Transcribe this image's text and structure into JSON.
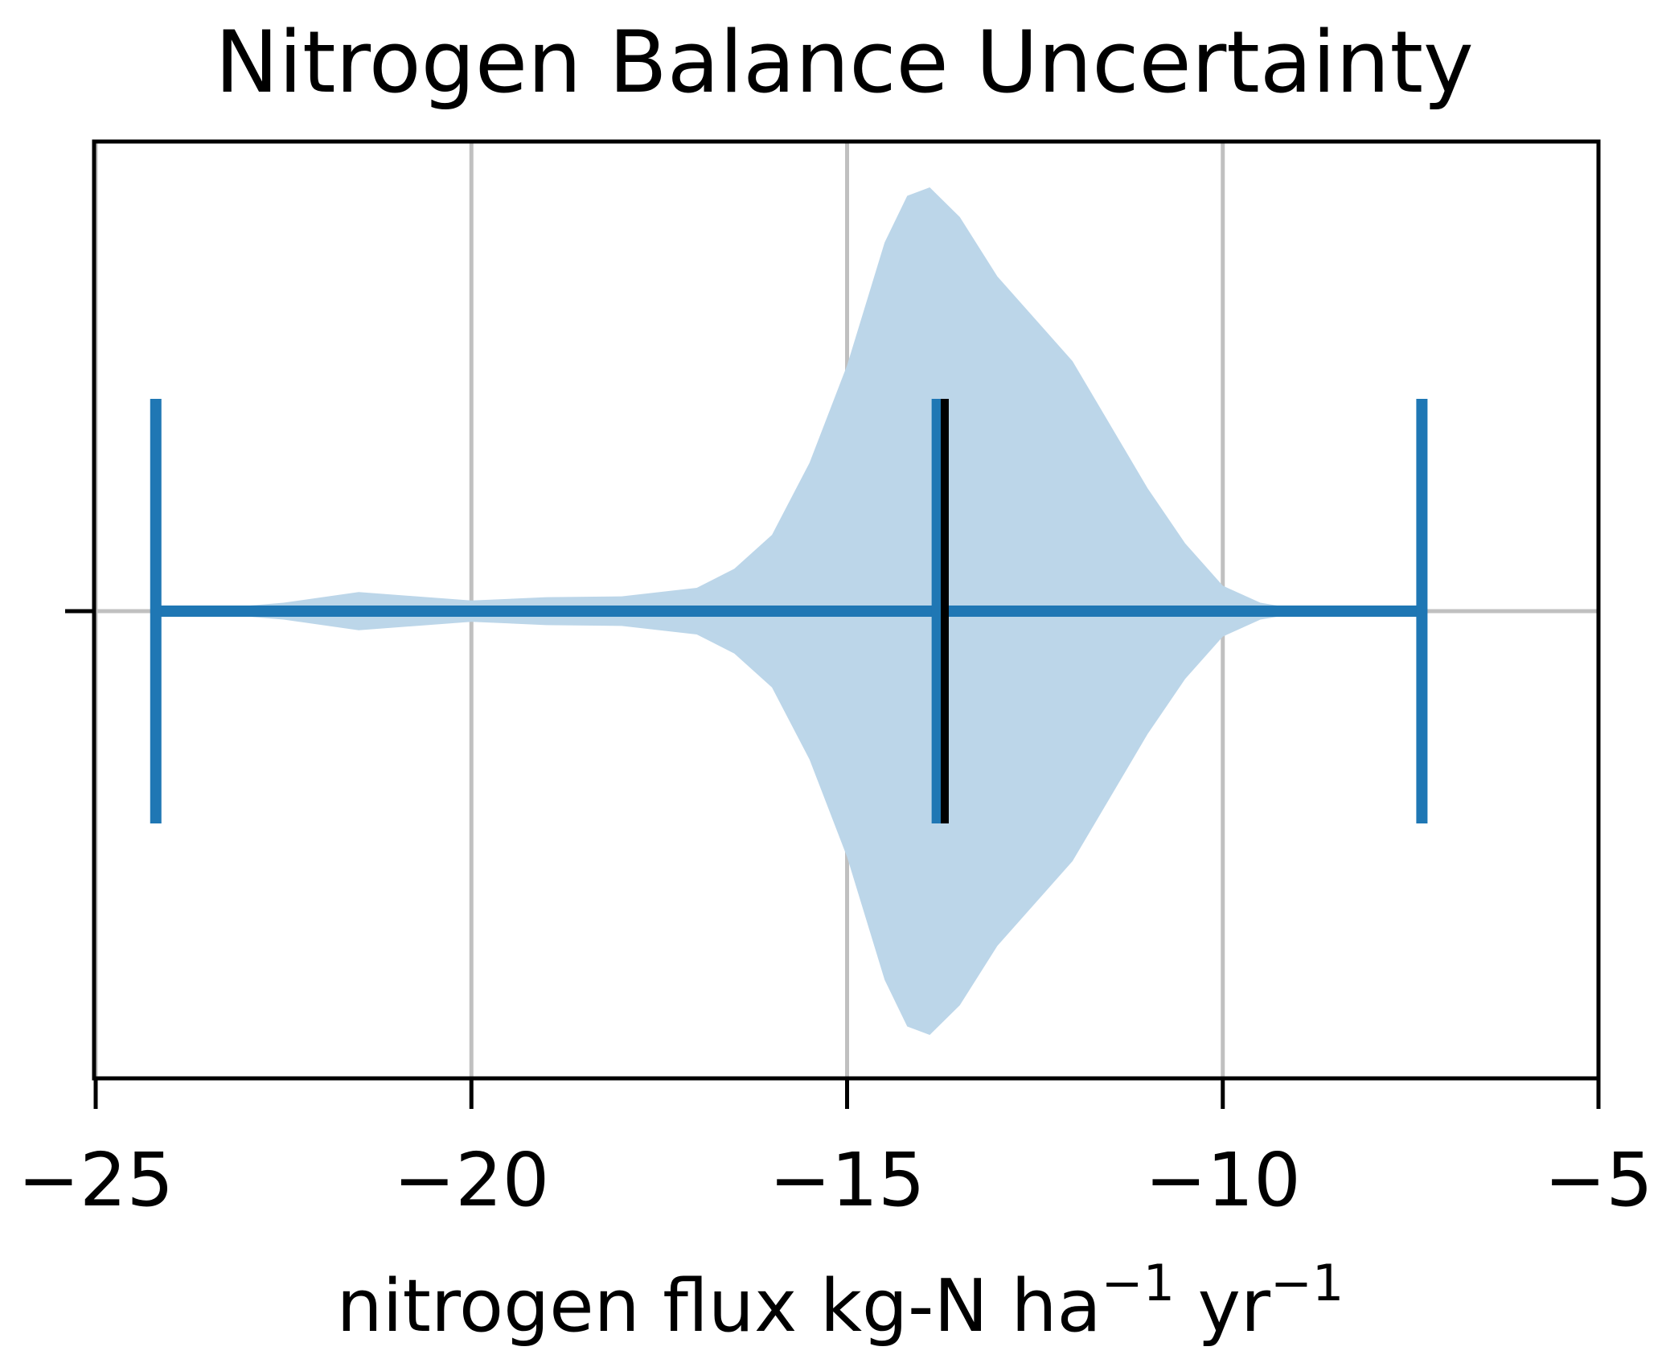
{
  "chart_data": {
    "type": "violin",
    "title": "Nitrogen Balance Uncertainty",
    "xlabel": "nitrogen flux kg-N ha",
    "xlabel_unit_parts": [
      "−1",
      " yr",
      "−1"
    ],
    "xlim": [
      -25,
      -5
    ],
    "xticks": [
      -25,
      -20,
      -15,
      -10,
      -5
    ],
    "xtick_labels": [
      "−25",
      "−20",
      "−15",
      "−10",
      "−5"
    ],
    "grid": true,
    "orientation": "horizontal",
    "stats": {
      "min": -24.2,
      "max": -7.35,
      "mean": -13.8,
      "median": -13.7
    },
    "density": {
      "x": [
        -24.2,
        -23.5,
        -22.5,
        -21.5,
        -20,
        -19,
        -18,
        -17,
        -16.5,
        -16,
        -15.5,
        -15,
        -14.5,
        -14.2,
        -13.9,
        -13.5,
        -13,
        -12.5,
        -12,
        -11.5,
        -11,
        -10.5,
        -10,
        -9.5,
        -9,
        -8.5,
        -7.35
      ],
      "relative_width": [
        0,
        0.005,
        0.02,
        0.045,
        0.025,
        0.033,
        0.035,
        0.055,
        0.1,
        0.18,
        0.35,
        0.58,
        0.87,
        0.98,
        1,
        0.93,
        0.79,
        0.69,
        0.59,
        0.44,
        0.29,
        0.16,
        0.06,
        0.02,
        0.005,
        0.001,
        0
      ]
    },
    "colors": {
      "body": "#bcd6e9",
      "lines": "#1f77b4",
      "median": "#000000",
      "grid": "#c0c0c0"
    }
  }
}
